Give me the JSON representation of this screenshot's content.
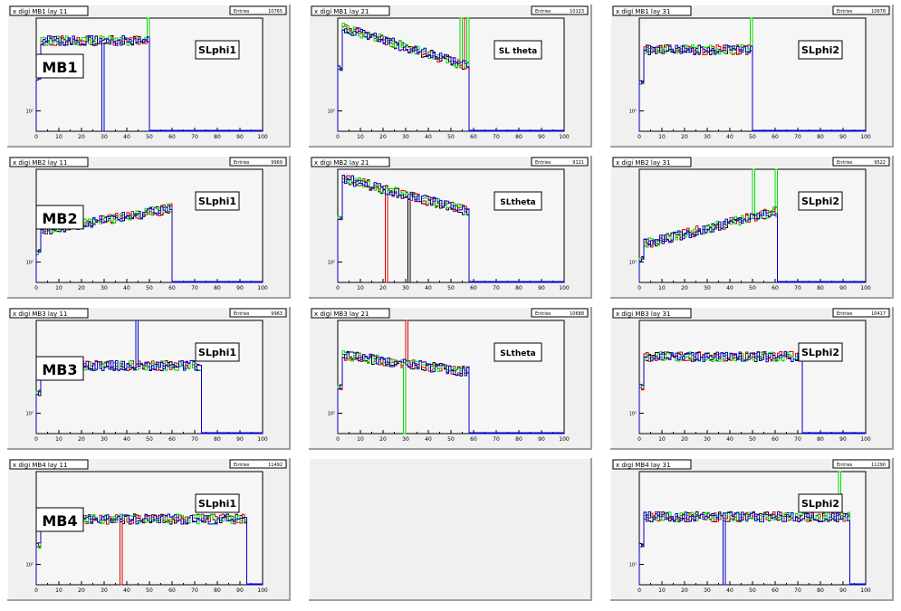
{
  "panels": [
    {
      "id": "mb1-11",
      "title": "x digi MB1 lay 11",
      "entries_label": "Entries",
      "entries": "10765",
      "chamber": "MB1",
      "superlayer": "SLphi1",
      "chart_data": {
        "type": "line",
        "x_range": [
          0,
          100
        ],
        "y_scale": "log",
        "xticks": [
          "0",
          "10",
          "20",
          "30",
          "40",
          "50",
          "60",
          "70",
          "80",
          "90",
          "100"
        ],
        "ytick": "10²",
        "last_channel": 50,
        "level": 0.8,
        "dips": [
          {
            "x": 29,
            "series": "blue"
          }
        ],
        "spikes": [
          {
            "x": 49,
            "series": "green"
          }
        ]
      }
    },
    {
      "id": "mb1-21",
      "title": "x digi MB1 lay 21",
      "entries_label": "Entries",
      "entries": "10123",
      "chamber": "",
      "superlayer": "SL theta",
      "chart_data": {
        "type": "line",
        "x_range": [
          0,
          100
        ],
        "y_scale": "log",
        "xticks": [
          "0",
          "10",
          "20",
          "30",
          "40",
          "50",
          "60",
          "70",
          "80",
          "90",
          "100"
        ],
        "ytick": "10²",
        "last_channel": 58,
        "level": 0.75,
        "slope": -0.35,
        "dips": [],
        "spikes": [
          {
            "x": 54,
            "series": "green"
          },
          {
            "x": 55,
            "series": "red"
          },
          {
            "x": 57,
            "series": "green"
          }
        ]
      }
    },
    {
      "id": "mb1-31",
      "title": "x digi MB1 lay 31",
      "entries_label": "Entries",
      "entries": "10678",
      "chamber": "",
      "superlayer": "SLphi2",
      "chart_data": {
        "type": "line",
        "x_range": [
          0,
          100
        ],
        "y_scale": "log",
        "xticks": [
          "0",
          "10",
          "20",
          "30",
          "40",
          "50",
          "60",
          "70",
          "80",
          "90",
          "100"
        ],
        "ytick": "10²",
        "last_channel": 50,
        "level": 0.72,
        "dips": [],
        "spikes": [
          {
            "x": 49,
            "series": "green"
          }
        ]
      }
    },
    {
      "id": "mb2-11",
      "title": "x digi MB2 lay 11",
      "entries_label": "Entries",
      "entries": "9969",
      "chamber": "MB2",
      "superlayer": "SLphi1",
      "chart_data": {
        "type": "line",
        "x_range": [
          0,
          100
        ],
        "y_scale": "log",
        "xticks": [
          "0",
          "10",
          "20",
          "30",
          "40",
          "50",
          "60",
          "70",
          "80",
          "90",
          "100"
        ],
        "ytick": "10²",
        "last_channel": 60,
        "level": 0.55,
        "slope": 0.2,
        "dips": [],
        "spikes": []
      }
    },
    {
      "id": "mb2-21",
      "title": "x digi MB2 lay 21",
      "entries_label": "Entries",
      "entries": "9121",
      "chamber": "",
      "superlayer": "SLtheta",
      "chart_data": {
        "type": "line",
        "x_range": [
          0,
          100
        ],
        "y_scale": "log",
        "xticks": [
          "0",
          "10",
          "20",
          "30",
          "40",
          "50",
          "60",
          "70",
          "80",
          "90",
          "100"
        ],
        "ytick": "10²",
        "last_channel": 58,
        "level": 0.78,
        "slope": -0.3,
        "dips": [
          {
            "x": 21,
            "series": "red"
          },
          {
            "x": 31,
            "series": "black"
          }
        ],
        "spikes": []
      }
    },
    {
      "id": "mb2-31",
      "title": "x digi MB2 lay 31",
      "entries_label": "Entries",
      "entries": "9522",
      "chamber": "",
      "superlayer": "SLphi2",
      "chart_data": {
        "type": "line",
        "x_range": [
          0,
          100
        ],
        "y_scale": "log",
        "xticks": [
          "0",
          "10",
          "20",
          "30",
          "40",
          "50",
          "60",
          "70",
          "80",
          "90",
          "100"
        ],
        "ytick": "10²",
        "last_channel": 61,
        "level": 0.48,
        "slope": 0.3,
        "dips": [],
        "spikes": [
          {
            "x": 50,
            "series": "green"
          },
          {
            "x": 60,
            "series": "green"
          }
        ]
      }
    },
    {
      "id": "mb3-11",
      "title": "x digi MB3 lay 11",
      "entries_label": "Entries",
      "entries": "9963",
      "chamber": "MB3",
      "superlayer": "SLphi1",
      "chart_data": {
        "type": "line",
        "x_range": [
          0,
          100
        ],
        "y_scale": "log",
        "xticks": [
          "0",
          "10",
          "20",
          "30",
          "40",
          "50",
          "60",
          "70",
          "80",
          "90",
          "100"
        ],
        "ytick": "10²",
        "last_channel": 73,
        "level": 0.6,
        "dips": [],
        "spikes": [
          {
            "x": 44,
            "series": "blue"
          }
        ]
      }
    },
    {
      "id": "mb3-21",
      "title": "x digi MB3 lay 21",
      "entries_label": "Entries",
      "entries": "10688",
      "chamber": "",
      "superlayer": "SLtheta",
      "chart_data": {
        "type": "line",
        "x_range": [
          0,
          100
        ],
        "y_scale": "log",
        "xticks": [
          "0",
          "10",
          "20",
          "30",
          "40",
          "50",
          "60",
          "70",
          "80",
          "90",
          "100"
        ],
        "ytick": "10²",
        "last_channel": 58,
        "level": 0.62,
        "slope": -0.15,
        "dips": [
          {
            "x": 29,
            "series": "green"
          }
        ],
        "spikes": [
          {
            "x": 30,
            "series": "red"
          }
        ]
      }
    },
    {
      "id": "mb3-31",
      "title": "x digi MB3 lay 31",
      "entries_label": "Entries",
      "entries": "10417",
      "chamber": "",
      "superlayer": "SLphi2",
      "chart_data": {
        "type": "line",
        "x_range": [
          0,
          100
        ],
        "y_scale": "log",
        "xticks": [
          "0",
          "10",
          "20",
          "30",
          "40",
          "50",
          "60",
          "70",
          "80",
          "90",
          "100"
        ],
        "ytick": "10²",
        "last_channel": 72,
        "level": 0.68,
        "dips": [],
        "spikes": []
      }
    },
    {
      "id": "mb4-11",
      "title": "x digi MB4 lay 11",
      "entries_label": "Entries",
      "entries": "11492",
      "chamber": "MB4",
      "superlayer": "SLphi1",
      "chart_data": {
        "type": "line",
        "x_range": [
          0,
          100
        ],
        "y_scale": "log",
        "xticks": [
          "0",
          "10",
          "20",
          "30",
          "40",
          "50",
          "60",
          "70",
          "80",
          "90",
          "100"
        ],
        "ytick": "10²",
        "last_channel": 93,
        "level": 0.58,
        "dips": [
          {
            "x": 37,
            "series": "red"
          }
        ],
        "spikes": []
      }
    },
    null,
    {
      "id": "mb4-31",
      "title": "x digi MB4 lay 31",
      "entries_label": "Entries",
      "entries": "11290",
      "chamber": "",
      "superlayer": "SLphi2",
      "chart_data": {
        "type": "line",
        "x_range": [
          0,
          100
        ],
        "y_scale": "log",
        "xticks": [
          "0",
          "10",
          "20",
          "30",
          "40",
          "50",
          "60",
          "70",
          "80",
          "90",
          "100"
        ],
        "ytick": "10²",
        "last_channel": 93,
        "level": 0.6,
        "dips": [
          {
            "x": 37,
            "series": "blue"
          }
        ],
        "spikes": [
          {
            "x": 88,
            "series": "green"
          }
        ]
      }
    }
  ],
  "colors": {
    "background": "#ffffff",
    "pad": "#f0f0f0",
    "frame_light": "#ffffff",
    "frame_dark": "#a0a0a0",
    "axis_fill": "#f6f6f6",
    "black": "#000000",
    "red": "#e00000",
    "green": "#00dd00",
    "blue": "#0000cc",
    "label_box": "#ffffff"
  }
}
